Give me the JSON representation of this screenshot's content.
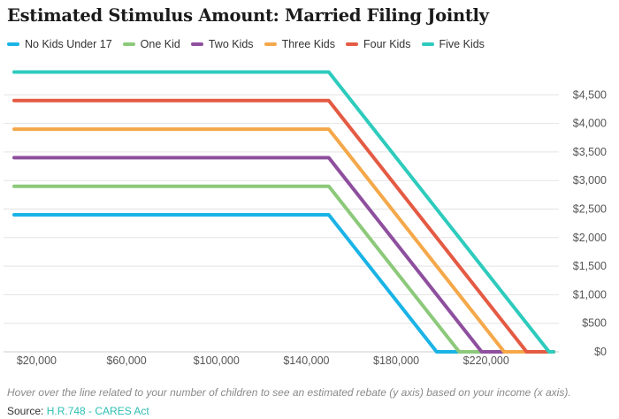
{
  "title": "Estimated Stimulus Amount: Married Filing Jointly",
  "caption": "Hover over the line related to your number of children to see an estimated rebate (y axis) based on your income (x axis).",
  "source": {
    "label": "Source:",
    "link_text": "H.R.748 - CARES Act"
  },
  "chart_data": {
    "type": "line",
    "title": "Estimated Stimulus Amount: Married Filing Jointly",
    "xlabel": "",
    "ylabel": "",
    "xlim": [
      10000,
      250000
    ],
    "ylim": [
      0,
      5000
    ],
    "x_ticks": [
      20000,
      60000,
      100000,
      140000,
      180000,
      220000
    ],
    "x_tick_labels": [
      "$20,000",
      "$60,000",
      "$100,000",
      "$140,000",
      "$180,000",
      "$220,000"
    ],
    "y_ticks": [
      0,
      500,
      1000,
      1500,
      2000,
      2500,
      3000,
      3500,
      4000,
      4500
    ],
    "y_tick_labels": [
      "$0",
      "$500",
      "$1,000",
      "$1,500",
      "$2,000",
      "$2,500",
      "$3,000",
      "$3,500",
      "$4,000",
      "$4,500"
    ],
    "grid": true,
    "legend_position": "top-left",
    "series": [
      {
        "name": "No Kids Under 17",
        "color": "#1ab3e6",
        "x": [
          10000,
          150000,
          198000,
          250000
        ],
        "y": [
          2400,
          2400,
          0,
          0
        ]
      },
      {
        "name": "One Kid",
        "color": "#8cc97a",
        "x": [
          10000,
          150000,
          208000,
          250000
        ],
        "y": [
          2900,
          2900,
          0,
          0
        ]
      },
      {
        "name": "Two Kids",
        "color": "#8e4f9e",
        "x": [
          10000,
          150000,
          218000,
          250000
        ],
        "y": [
          3400,
          3400,
          0,
          0
        ]
      },
      {
        "name": "Three Kids",
        "color": "#f5a84a",
        "x": [
          10000,
          150000,
          228000,
          250000
        ],
        "y": [
          3900,
          3900,
          0,
          0
        ]
      },
      {
        "name": "Four Kids",
        "color": "#e45a43",
        "x": [
          10000,
          150000,
          238000,
          250000
        ],
        "y": [
          4400,
          4400,
          0,
          0
        ]
      },
      {
        "name": "Five Kids",
        "color": "#2ecbbd",
        "x": [
          10000,
          150000,
          248000,
          250000
        ],
        "y": [
          4900,
          4900,
          0,
          0
        ]
      }
    ]
  }
}
